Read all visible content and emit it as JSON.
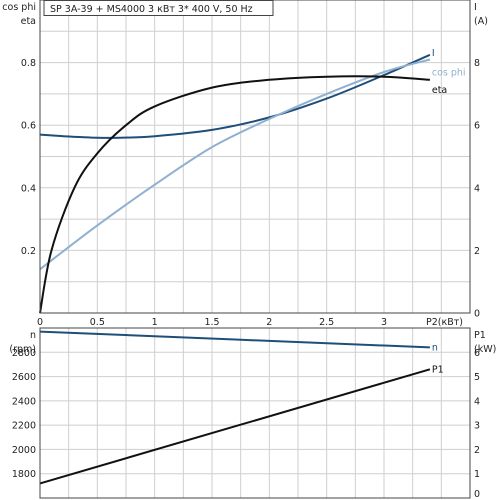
{
  "chart_data": [
    {
      "type": "line",
      "title": "SP 3A-39 + MS4000    3 кВт   3* 400 V, 50 Hz",
      "xlabel": "P2(кВт)",
      "xlim": [
        0,
        3.75
      ],
      "xticks": [
        "0",
        "0.5",
        "1",
        "1.5",
        "2",
        "2.5",
        "3"
      ],
      "left_axis": {
        "label1": "cos phi",
        "label2": "eta",
        "ylim": [
          0,
          1.0
        ],
        "ticks": [
          "0.2",
          "0.4",
          "0.6",
          "0.8"
        ]
      },
      "right_axis": {
        "label1": "I",
        "label2": "(A)",
        "ylim": [
          0,
          10
        ],
        "ticks": [
          "0",
          "2",
          "4",
          "6",
          "8"
        ]
      },
      "grid": true,
      "series": [
        {
          "name": "I",
          "axis": "right",
          "color": "#1f4e79",
          "x": [
            0,
            0.2,
            0.5,
            0.7,
            1.0,
            1.5,
            2.0,
            2.5,
            3.0,
            3.4
          ],
          "y": [
            5.7,
            5.65,
            5.6,
            5.6,
            5.65,
            5.85,
            6.25,
            6.85,
            7.6,
            8.25
          ]
        },
        {
          "name": "cos phi",
          "axis": "left",
          "color": "#8fb0d0",
          "x": [
            0,
            0.5,
            1.0,
            1.5,
            2.0,
            2.5,
            3.0,
            3.4
          ],
          "y": [
            0.14,
            0.28,
            0.41,
            0.53,
            0.62,
            0.7,
            0.77,
            0.81
          ]
        },
        {
          "name": "eta",
          "axis": "left",
          "color": "#111111",
          "x": [
            0,
            0.1,
            0.3,
            0.5,
            0.75,
            1.0,
            1.5,
            2.0,
            2.5,
            3.0,
            3.4
          ],
          "y": [
            0,
            0.2,
            0.4,
            0.51,
            0.6,
            0.66,
            0.72,
            0.745,
            0.755,
            0.755,
            0.745
          ]
        }
      ]
    },
    {
      "type": "line",
      "xlim": [
        0,
        3.75
      ],
      "left_axis": {
        "label1": "n",
        "label2": "(rpm)",
        "ylim": [
          1600,
          3000
        ],
        "ticks": [
          "1800",
          "2000",
          "2200",
          "2400",
          "2600",
          "2800"
        ]
      },
      "right_axis": {
        "label1": "P1",
        "label2": "(kW)",
        "ylim": [
          0,
          7
        ],
        "ticks": [
          "0",
          "1",
          "2",
          "3",
          "4",
          "5",
          "6"
        ]
      },
      "grid": true,
      "series": [
        {
          "name": "n",
          "axis": "left",
          "color": "#1f4e79",
          "x": [
            0,
            3.4
          ],
          "y": [
            2970,
            2840
          ]
        },
        {
          "name": "P1",
          "axis": "right",
          "color": "#111111",
          "x": [
            0,
            3.4
          ],
          "y": [
            0.6,
            5.3
          ]
        }
      ]
    }
  ]
}
